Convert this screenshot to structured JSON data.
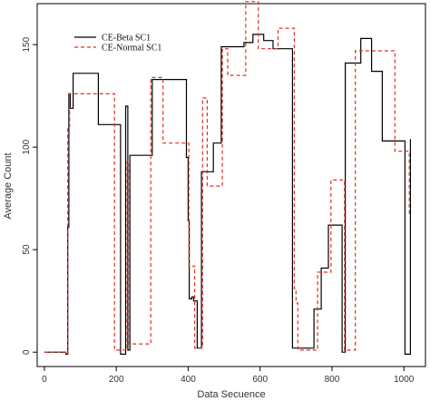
{
  "chart_data": {
    "type": "line",
    "xlabel": "Data Secuence",
    "ylabel": "Average Count",
    "xlim": [
      -20,
      1060
    ],
    "ylim": [
      -7,
      170
    ],
    "xticks": [
      0,
      200,
      400,
      600,
      800,
      1000
    ],
    "yticks": [
      0,
      50,
      100,
      150
    ],
    "legend_position": "top-left",
    "grid": false,
    "series": [
      {
        "name": "CE-Beta SC1",
        "color": "#000000",
        "dash": "solid",
        "step": true,
        "x": [
          0,
          30,
          60,
          65,
          68,
          72,
          80,
          145,
          150,
          195,
          212,
          220,
          223,
          226,
          232,
          238,
          268,
          300,
          320,
          395,
          398,
          400,
          403,
          406,
          410,
          415,
          425,
          437,
          458,
          470,
          492,
          502,
          555,
          580,
          610,
          632,
          636,
          648,
          660,
          690,
          693,
          700,
          750,
          770,
          790,
          795,
          820,
          828,
          837,
          860,
          880,
          905,
          910,
          940,
          998,
          1003,
          1010,
          1018
        ],
        "y": [
          0,
          0,
          -1,
          61,
          126,
          119,
          136,
          136,
          111,
          111,
          -1,
          -1,
          -1,
          120,
          1,
          96,
          96,
          133,
          133,
          95,
          95,
          64,
          26,
          26,
          27,
          25,
          2,
          88,
          88,
          102,
          149,
          149,
          151,
          155,
          152,
          152,
          148,
          148,
          148,
          2,
          2,
          2,
          21,
          41,
          62,
          62,
          62,
          0,
          141,
          141,
          153,
          153,
          137,
          103,
          103,
          -1,
          -1,
          104
        ]
      },
      {
        "name": "CE-Normal SC1",
        "color": "#e0301e",
        "dash": "dashed",
        "step": true,
        "x": [
          0,
          30,
          60,
          65,
          70,
          128,
          195,
          207,
          230,
          236,
          268,
          296,
          330,
          395,
          402,
          410,
          418,
          426,
          440,
          453,
          495,
          510,
          535,
          560,
          575,
          595,
          630,
          650,
          690,
          695,
          700,
          705,
          753,
          760,
          775,
          793,
          797,
          835,
          840,
          865,
          880,
          950,
          975,
          1015
        ],
        "y": [
          0,
          0,
          -1,
          110,
          126,
          126,
          1,
          1,
          93,
          4,
          4,
          134,
          102,
          102,
          42,
          42,
          2,
          2,
          124,
          81,
          148,
          135,
          135,
          171,
          171,
          148,
          148,
          158,
          158,
          31,
          24,
          1,
          1,
          39,
          39,
          39,
          84,
          1,
          1,
          147,
          147,
          147,
          98,
          67
        ]
      }
    ]
  }
}
